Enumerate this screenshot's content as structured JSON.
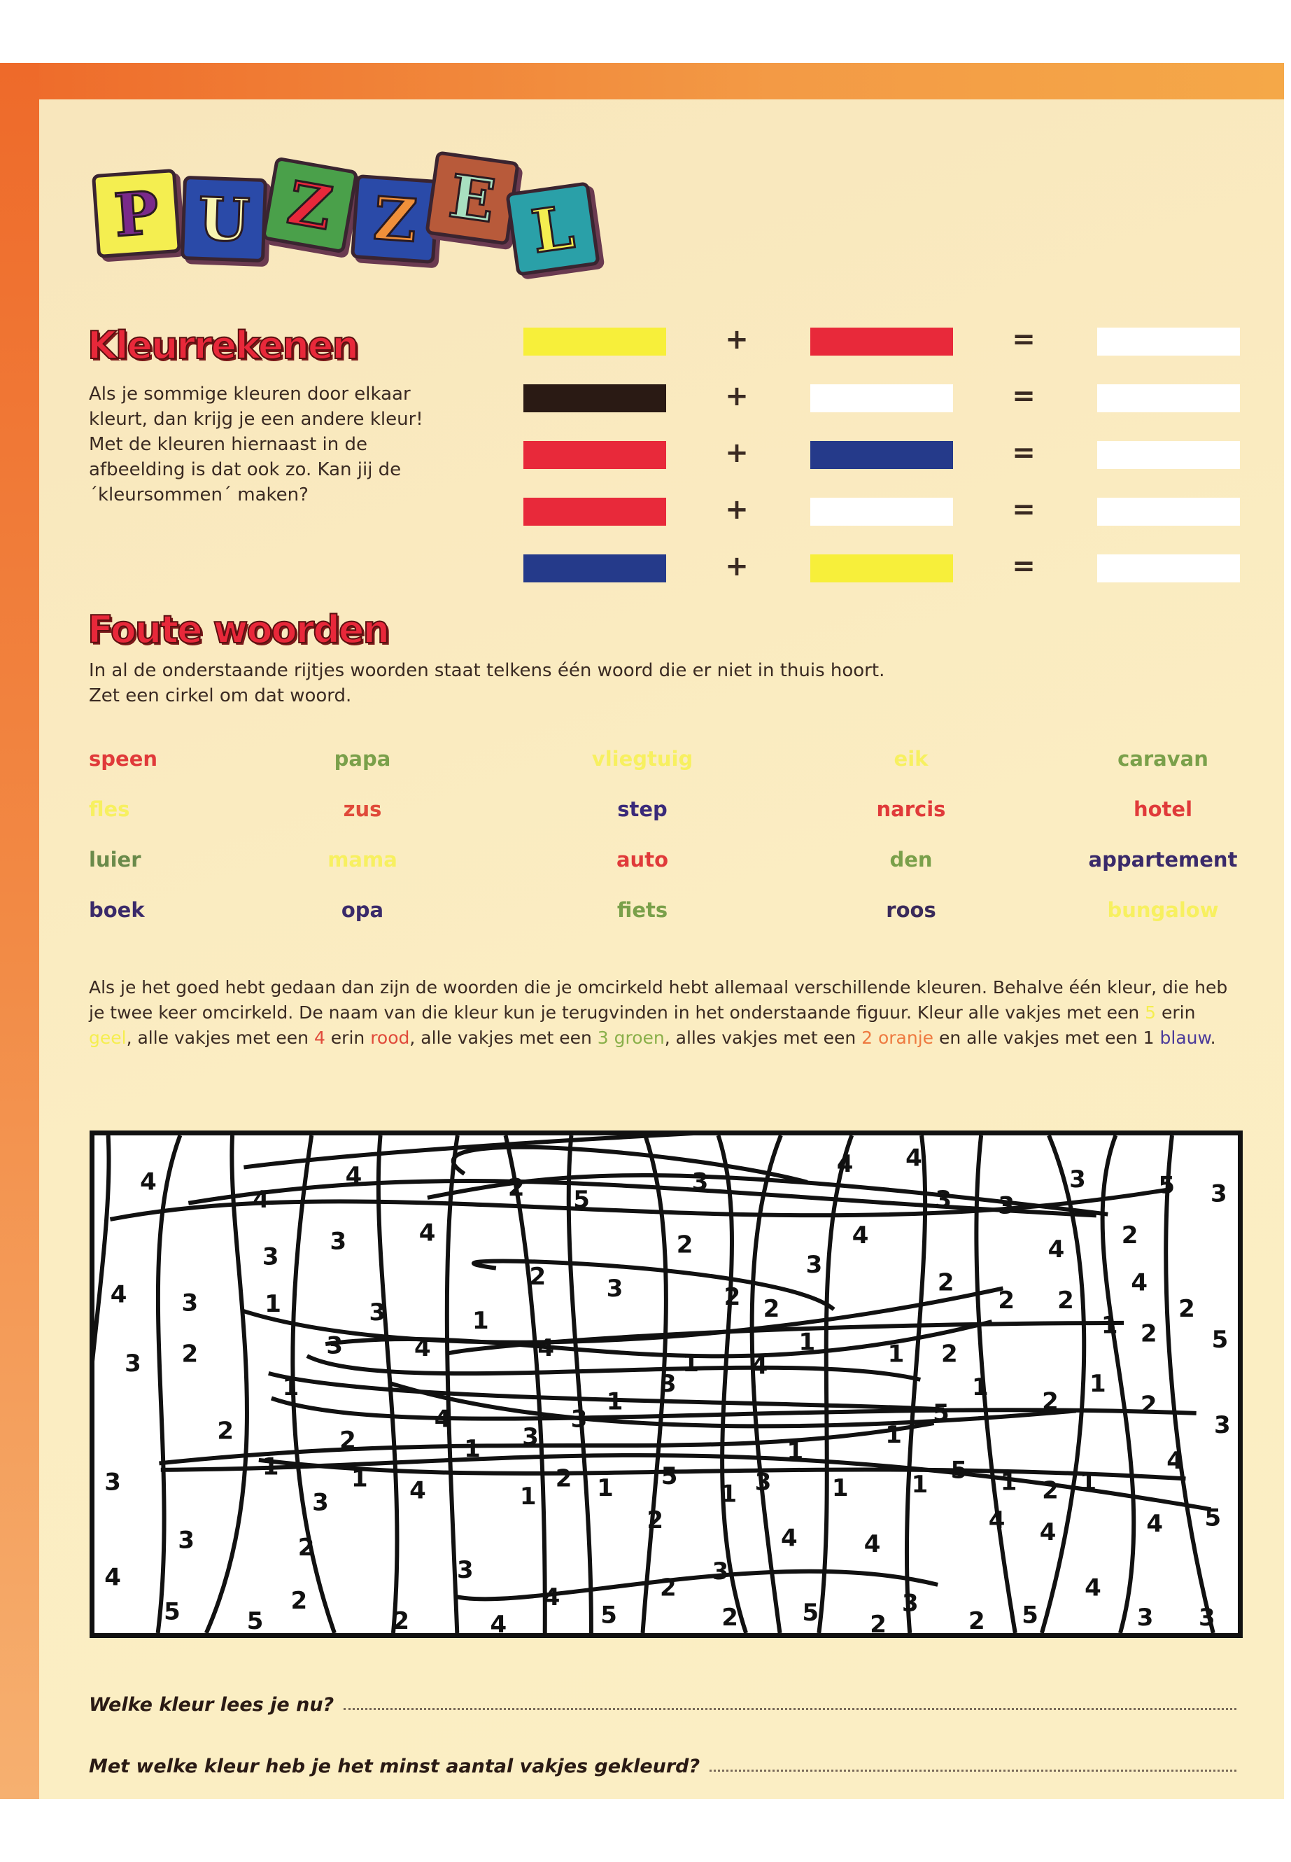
{
  "logo": {
    "letters": [
      "P",
      "U",
      "Z",
      "Z",
      "E",
      "L"
    ]
  },
  "kleurrekenen": {
    "title": "Kleurrekenen",
    "text_lines": [
      "Als je sommige kleuren door elkaar",
      "kleurt, dan krijg je een andere kleur!",
      "Met de kleuren hiernaast in de",
      "afbeelding is dat ook zo. Kan jij de",
      "´kleursommen´ maken?"
    ],
    "plus": "+",
    "equals": "=",
    "sums": [
      {
        "a": "#f7ef3a",
        "b": "#e8293a",
        "result": "#ffffff"
      },
      {
        "a": "#2a1a14",
        "b": "#ffffff",
        "result": "#ffffff"
      },
      {
        "a": "#e8293a",
        "b": "#253a8a",
        "result": "#ffffff"
      },
      {
        "a": "#e8293a",
        "b": "#ffffff",
        "result": "#ffffff"
      },
      {
        "a": "#253a8a",
        "b": "#f7ef3a",
        "result": "#ffffff"
      }
    ]
  },
  "foute_woorden": {
    "title": "Foute woorden",
    "text_lines": [
      "In al de onderstaande rijtjes woorden staat telkens één woord die er niet in thuis hoort.",
      "Zet een cirkel om dat woord."
    ],
    "rows": [
      [
        {
          "w": "speen",
          "c": "#e03a3a"
        },
        {
          "w": "papa",
          "c": "#7aa04a"
        },
        {
          "w": "vliegtuig",
          "c": "#f7f060"
        },
        {
          "w": "eik",
          "c": "#f7f060"
        },
        {
          "w": "caravan",
          "c": "#7aa04a"
        }
      ],
      [
        {
          "w": "fles",
          "c": "#f7f060"
        },
        {
          "w": "zus",
          "c": "#e04a3a"
        },
        {
          "w": "step",
          "c": "#3a2a7a"
        },
        {
          "w": "narcis",
          "c": "#e03a3a"
        },
        {
          "w": "hotel",
          "c": "#e03a3a"
        }
      ],
      [
        {
          "w": "luier",
          "c": "#6a8a4a"
        },
        {
          "w": "mama",
          "c": "#f7f060"
        },
        {
          "w": "auto",
          "c": "#e03a3a"
        },
        {
          "w": "den",
          "c": "#7aa04a"
        },
        {
          "w": "appartement",
          "c": "#3a2a6a"
        }
      ],
      [
        {
          "w": "boek",
          "c": "#3a2a6a"
        },
        {
          "w": "opa",
          "c": "#3a2a6a"
        },
        {
          "w": "fiets",
          "c": "#7aa04a"
        },
        {
          "w": "roos",
          "c": "#3a2a5a"
        },
        {
          "w": "bungalow",
          "c": "#f7f060"
        }
      ]
    ]
  },
  "instructions": {
    "p1": "Als je het goed hebt gedaan dan zijn de woorden die je omcirkeld hebt allemaal verschillende kleuren. Behalve één kleur, die heb je twee keer omcirkeld. De naam van die kleur kun je terugvinden in het onderstaande figuur. Kleur alle vakjes met een ",
    "n5": "5",
    "p2": " erin ",
    "c5": "geel",
    "p3": ", alle vakjes met een ",
    "n4": "4",
    "p4": " erin ",
    "c4": "rood",
    "p5": ", alle vakjes met een ",
    "n3": "3",
    "c3": "groen",
    "p6": ", alles vakjes met een ",
    "n2": "2",
    "c2": "oranje",
    "p7": " en alle vakjes met een 1 ",
    "c1": "blauw",
    "p8": ".",
    "colors": {
      "yellow": "#f5ee50",
      "red": "#e04a3a",
      "green": "#8ab04a",
      "orange": "#ee7a40",
      "blue": "#4a3a9a"
    }
  },
  "figure_numbers": [
    "4",
    "4",
    "4",
    "2",
    "5",
    "3",
    "4",
    "4",
    "3",
    "3",
    "3",
    "5",
    "3",
    "3",
    "3",
    "4",
    "2",
    "3",
    "4",
    "4",
    "2",
    "4",
    "3",
    "1",
    "3",
    "1",
    "2",
    "3",
    "2",
    "2",
    "2",
    "2",
    "2",
    "4",
    "2",
    "3",
    "2",
    "3",
    "4",
    "4",
    "1",
    "4",
    "1",
    "1",
    "2",
    "1",
    "2",
    "5",
    "1",
    "3",
    "1",
    "1",
    "2",
    "1",
    "2",
    "2",
    "2",
    "4",
    "1",
    "3",
    "3",
    "1",
    "1",
    "5",
    "3",
    "3",
    "1",
    "1",
    "3",
    "4",
    "1",
    "2",
    "1",
    "5",
    "1",
    "3",
    "1",
    "1",
    "5",
    "1",
    "2",
    "1",
    "4",
    "3",
    "2",
    "2",
    "4",
    "4",
    "4",
    "4",
    "4",
    "5",
    "4",
    "3",
    "3",
    "4",
    "2",
    "4",
    "5",
    "5",
    "2",
    "2",
    "4",
    "5",
    "2",
    "5",
    "2",
    "3",
    "2",
    "5",
    "3",
    "3"
  ],
  "questions": [
    "Welke kleur lees je nu?",
    "Met welke kleur heb je het minst aantal vakjes gekleurd?"
  ]
}
